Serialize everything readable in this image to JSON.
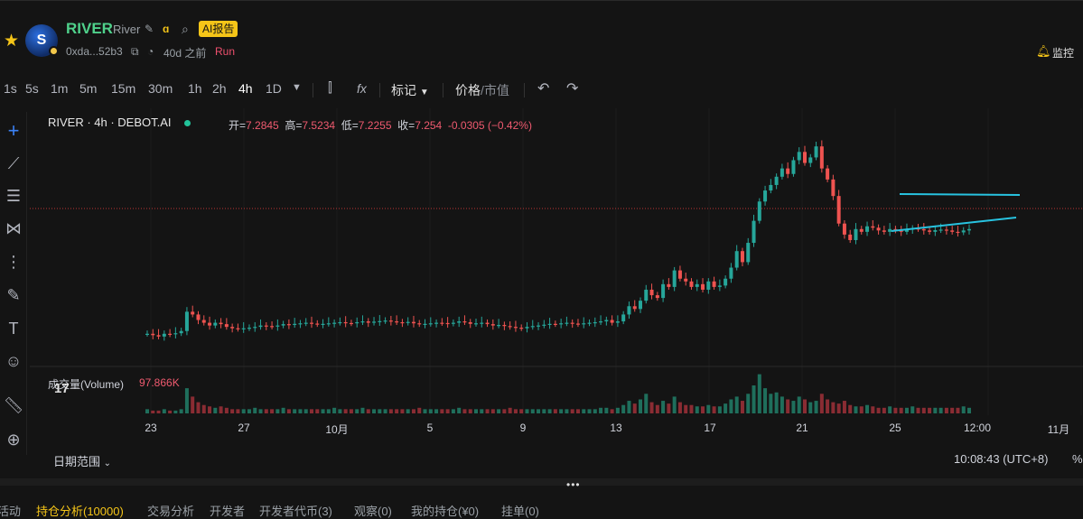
{
  "token": {
    "name": "RIVER",
    "subname": "River",
    "ai_report": "AI报告",
    "address": "0xda...52b3",
    "age": "40d 之前",
    "run": "Run",
    "monitor": "监控"
  },
  "toolbar": {
    "timeframes": [
      "1s",
      "5s",
      "1m",
      "5m",
      "15m",
      "30m",
      "1h",
      "2h",
      "4h",
      "1D"
    ],
    "active_timeframe": "4h",
    "fx": "fx",
    "indicators": "标记",
    "price_label": "价格",
    "mcap_label": "/市值"
  },
  "legend": {
    "symbol": "RIVER · 4h · DEBOT.AI",
    "open_label": "开=",
    "open": "7.2845",
    "high_label": "高=",
    "high": "7.5234",
    "low_label": "低=",
    "low": "7.2255",
    "close_label": "收=",
    "close": "7.254",
    "change": "-0.0305 (−0.42%)"
  },
  "volume": {
    "label": "成交量(Volume)",
    "value": "97.866K"
  },
  "x_axis": [
    "23",
    "27",
    "10月",
    "5",
    "9",
    "13",
    "17",
    "21",
    "25",
    "12:00",
    "11月"
  ],
  "footer": {
    "date_range": "日期范围",
    "clock": "10:08:43 (UTC+8)",
    "percent": "%"
  },
  "bottom_tabs": [
    "活动",
    "持仓分析(10000)",
    "交易分析",
    "开发者",
    "开发者代币(3)",
    "观察(0)",
    "我的持仓(¥0)",
    "挂单(0)"
  ],
  "colors": {
    "up": "#26a69a",
    "down": "#ef5350",
    "trendline": "#28c3e0",
    "brand": "#4fd18b",
    "accent": "#f5c518"
  },
  "chart_data": {
    "type": "candlestick",
    "price_shape": [
      5.6,
      5.55,
      5.5,
      5.6,
      5.58,
      5.62,
      5.7,
      6.4,
      6.3,
      6.1,
      6.0,
      5.9,
      6.0,
      5.95,
      5.85,
      5.8,
      5.78,
      5.8,
      5.82,
      5.85,
      5.9,
      5.88,
      5.86,
      5.9,
      5.95,
      5.92,
      5.96,
      5.98,
      6.0,
      5.97,
      5.95,
      5.96,
      5.98,
      6.0,
      6.02,
      5.99,
      5.98,
      6.02,
      6.05,
      6.0,
      6.04,
      6.06,
      6.08,
      6.05,
      6.02,
      6.0,
      6.03,
      5.98,
      5.95,
      5.96,
      5.98,
      6.0,
      5.99,
      5.97,
      6.0,
      6.05,
      6.02,
      5.96,
      5.98,
      6.0,
      5.95,
      5.9,
      5.92,
      5.88,
      5.85,
      5.82,
      5.8,
      5.85,
      5.88,
      5.9,
      5.93,
      5.96,
      5.95,
      5.98,
      6.0,
      5.97,
      5.95,
      5.98,
      6.0,
      6.02,
      6.05,
      6.1,
      6.0,
      6.05,
      6.3,
      6.6,
      6.5,
      6.8,
      7.2,
      7.0,
      6.9,
      7.4,
      7.3,
      7.9,
      7.6,
      7.5,
      7.3,
      7.4,
      7.2,
      7.5,
      7.3,
      7.35,
      7.6,
      8.0,
      8.6,
      8.2,
      8.9,
      9.7,
      10.4,
      10.8,
      11.0,
      11.3,
      11.6,
      11.4,
      11.9,
      12.2,
      11.8,
      12.0,
      12.4,
      11.6,
      11.2,
      10.6,
      9.6,
      9.2,
      9.0,
      9.4,
      9.3,
      9.5,
      9.45,
      9.35,
      9.3,
      9.4,
      9.35,
      9.3,
      9.38,
      9.42,
      9.4,
      9.35,
      9.3,
      9.36,
      9.38,
      9.35,
      9.3,
      9.28,
      9.35,
      9.4
    ],
    "volume_shape": [
      3,
      2,
      2,
      3,
      2,
      2,
      3,
      18,
      12,
      8,
      6,
      5,
      4,
      5,
      4,
      3,
      3,
      3,
      3,
      4,
      3,
      3,
      3,
      3,
      4,
      3,
      3,
      3,
      3,
      3,
      3,
      3,
      3,
      4,
      3,
      3,
      3,
      3,
      4,
      3,
      3,
      3,
      3,
      3,
      3,
      3,
      3,
      3,
      4,
      3,
      3,
      3,
      3,
      3,
      3,
      4,
      3,
      3,
      3,
      3,
      3,
      3,
      3,
      3,
      4,
      3,
      3,
      3,
      3,
      3,
      3,
      3,
      3,
      3,
      3,
      3,
      3,
      3,
      3,
      3,
      4,
      4,
      3,
      4,
      6,
      9,
      7,
      10,
      14,
      8,
      6,
      9,
      7,
      12,
      8,
      6,
      6,
      5,
      5,
      6,
      5,
      5,
      7,
      10,
      12,
      9,
      14,
      20,
      28,
      18,
      14,
      15,
      12,
      10,
      9,
      12,
      10,
      8,
      9,
      14,
      10,
      8,
      7,
      9,
      6,
      5,
      5,
      6,
      5,
      4,
      4,
      5,
      4,
      4,
      4,
      5,
      4,
      4,
      4,
      4,
      4,
      4,
      4,
      4,
      5,
      4
    ],
    "last_price": 7.254
  }
}
